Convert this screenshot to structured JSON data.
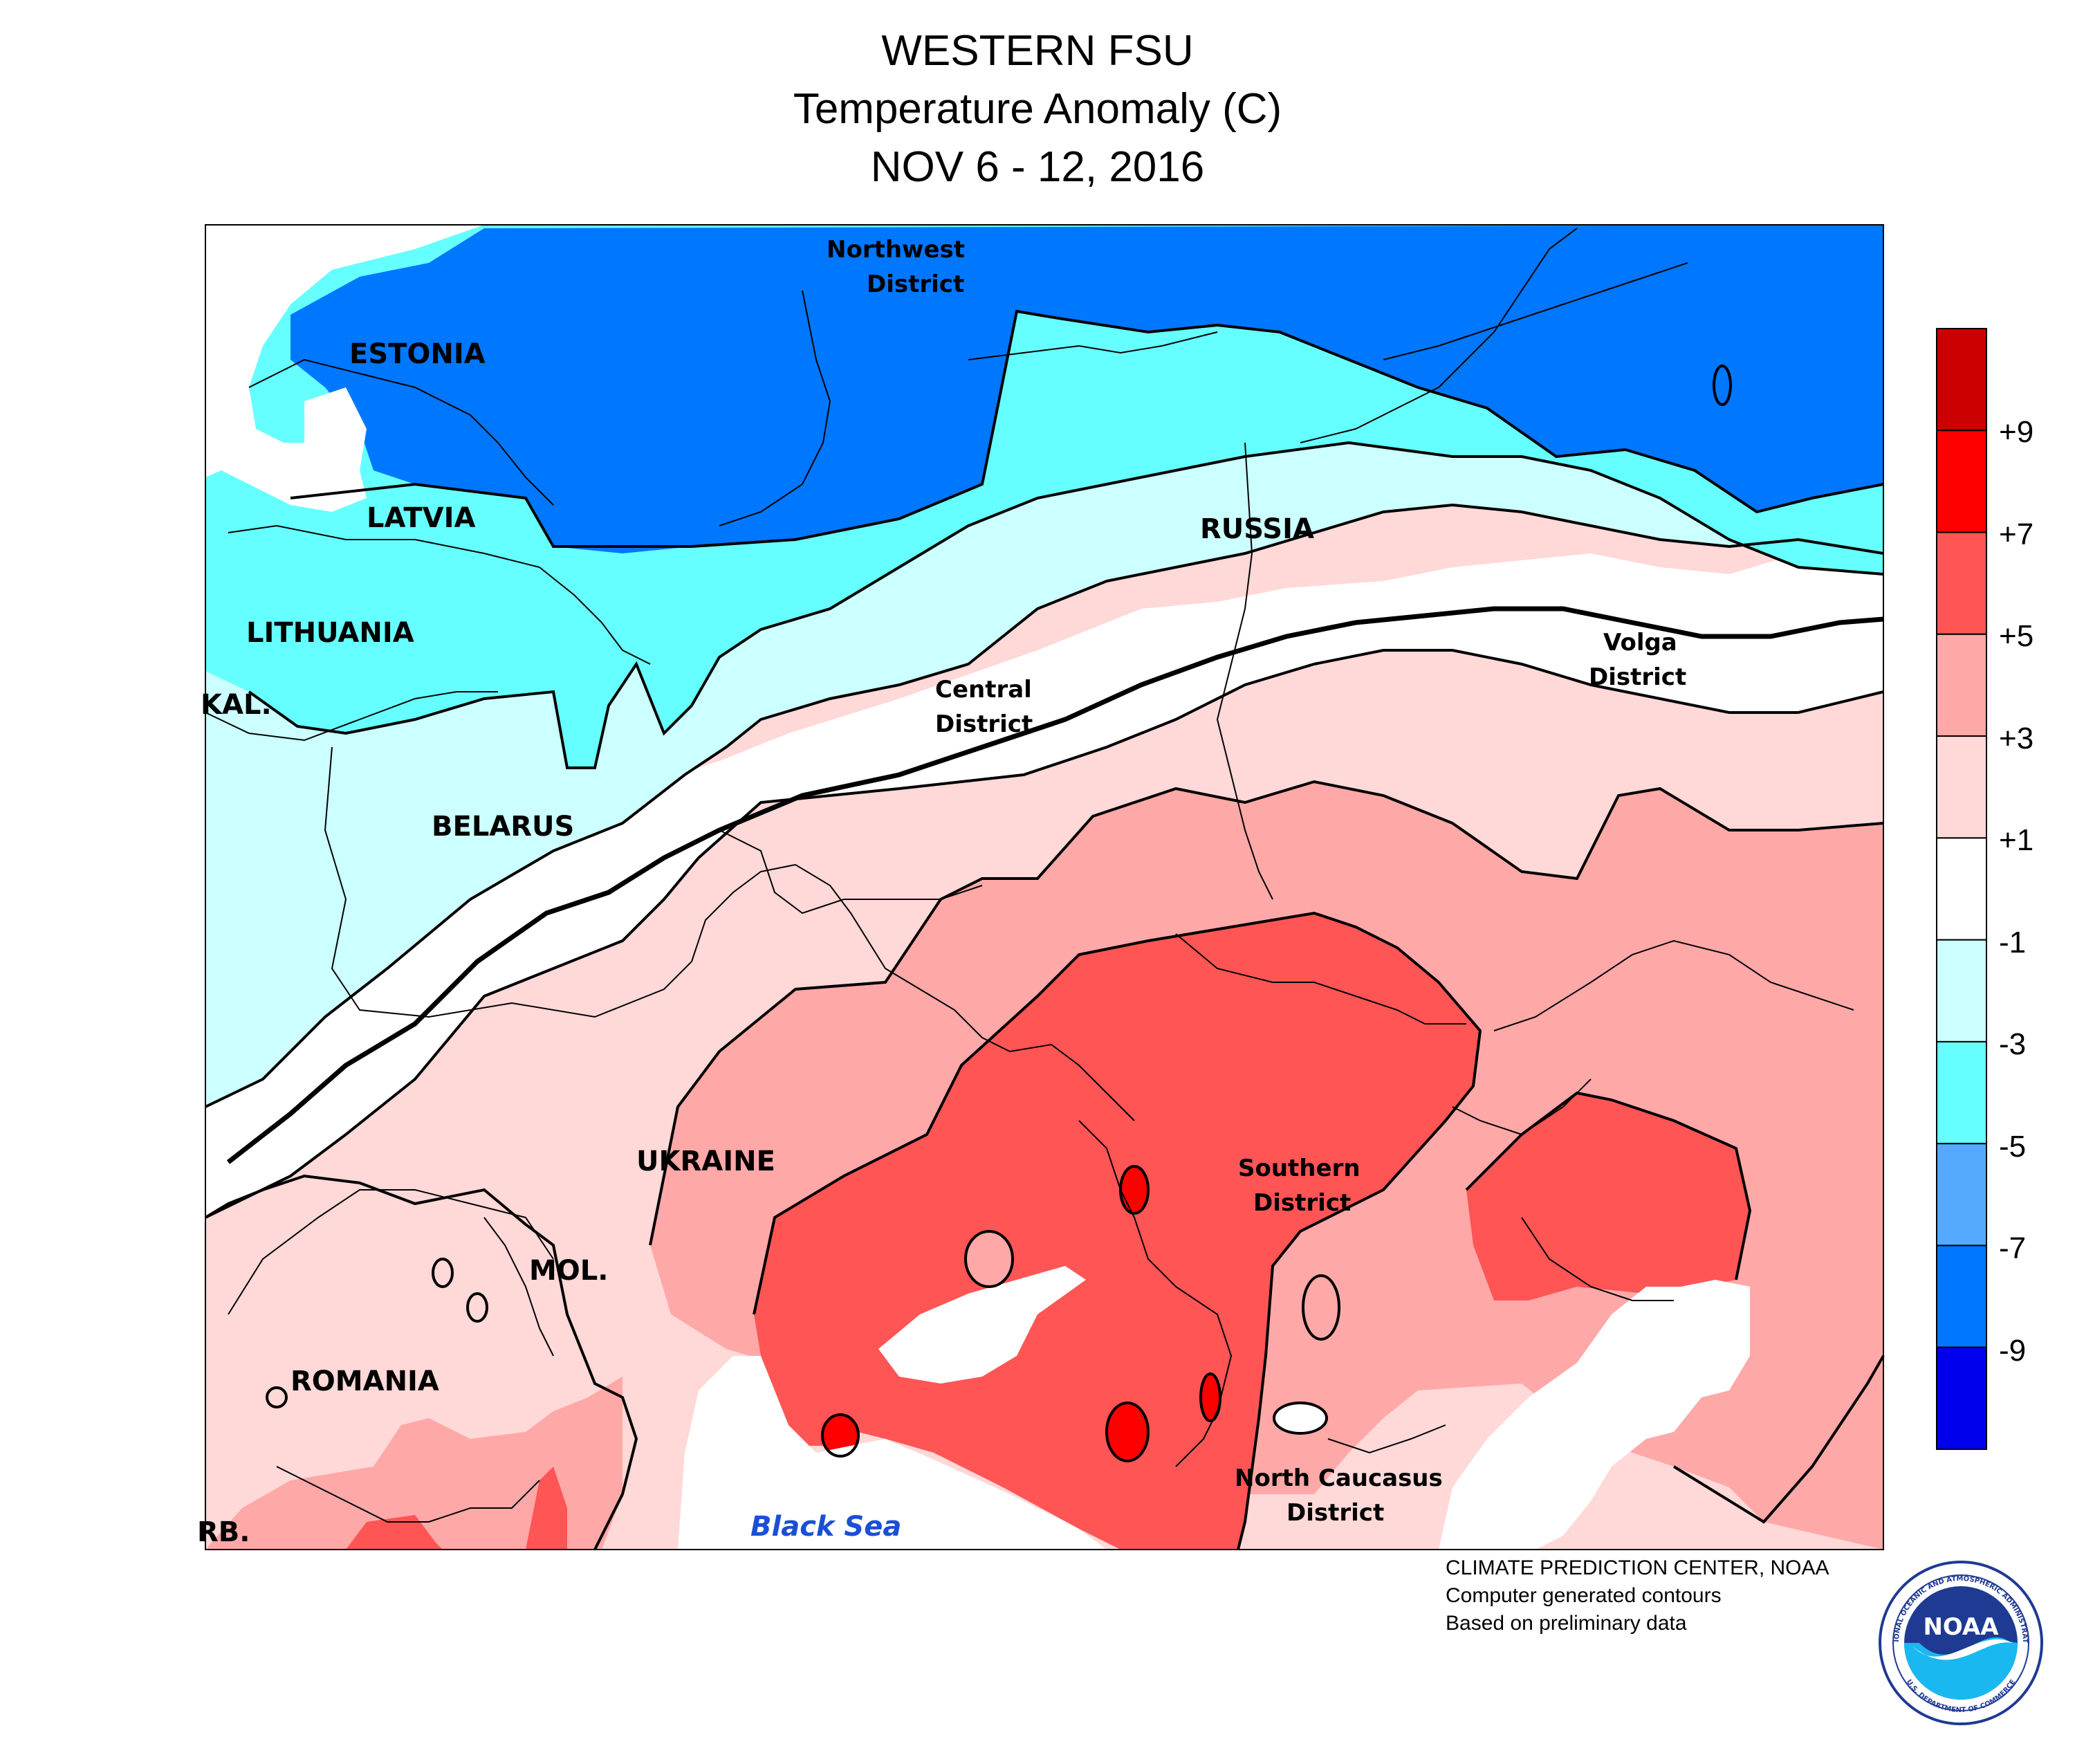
{
  "title": {
    "line1": "WESTERN FSU",
    "line2": "Temperature Anomaly (C)",
    "line3": "NOV 6 - 12, 2016"
  },
  "map_labels": {
    "estonia": "ESTONIA",
    "latvia": "LATVIA",
    "lithuania": "LITHUANIA",
    "kal": "KAL.",
    "belarus": "BELARUS",
    "russia": "RUSSIA",
    "ukraine": "UKRAINE",
    "mol": "MOL.",
    "romania": "ROMANIA",
    "serb": "RB.",
    "black_sea": "Black Sea",
    "northwest_1": "Northwest",
    "northwest_2": "District",
    "central_1": "Central",
    "central_2": "District",
    "volga_1": "Volga",
    "volga_2": "District",
    "southern_1": "Southern",
    "southern_2": "District",
    "ncaucasus_1": "North Caucasus",
    "ncaucasus_2": "District"
  },
  "legend": {
    "labels": [
      "+9",
      "+7",
      "+5",
      "+3",
      "+1",
      "-1",
      "-3",
      "-5",
      "-7",
      "-9"
    ],
    "colors": [
      "#cc0000",
      "#ff0000",
      "#ff5555",
      "#ffa8a8",
      "#ffd8d8",
      "#ffffff",
      "#ccffff",
      "#66ffff",
      "#55aaff",
      "#0077ff",
      "#0000ee"
    ]
  },
  "colors": {
    "deep_blue": "#0077ff",
    "cyan": "#66ffff",
    "light_cyan": "#ccffff",
    "light_pink": "#ffd8d8",
    "pink": "#ffa8a8",
    "red": "#ff5555",
    "dark_red": "#ff0000",
    "black_sea_label": "#1a4fd6"
  },
  "credits": {
    "line1": "CLIMATE PREDICTION CENTER, NOAA",
    "line2": "Computer generated contours",
    "line3": "Based on preliminary data"
  },
  "logo": {
    "text": "NOAA",
    "ring_text": "NATIONAL OCEANIC AND ATMOSPHERIC ADMINISTRATION",
    "ring_text_bottom": "U.S. DEPARTMENT OF COMMERCE"
  }
}
